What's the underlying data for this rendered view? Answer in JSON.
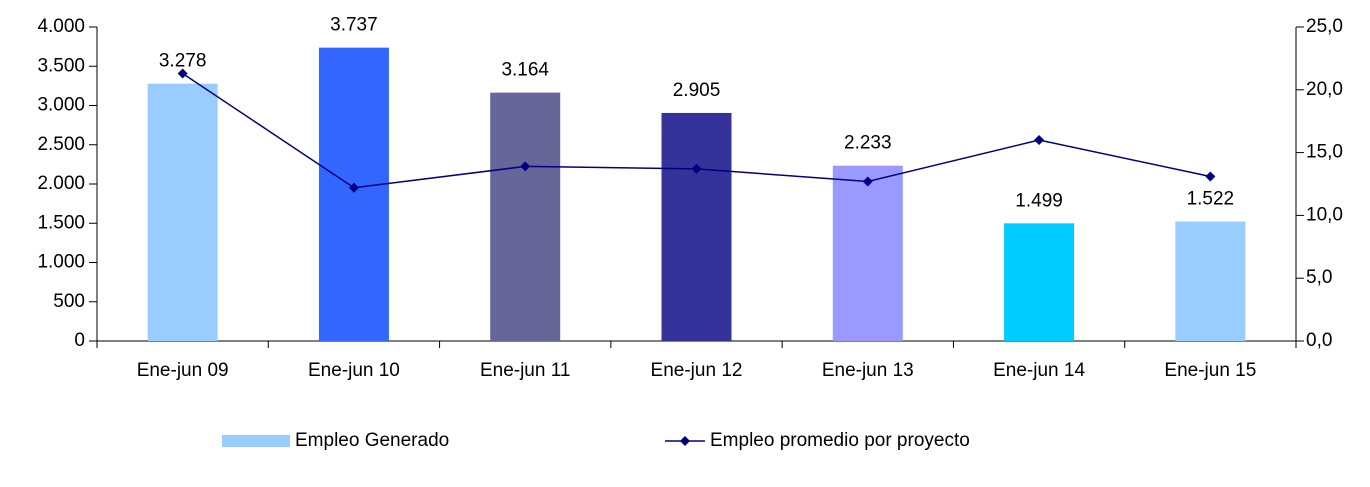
{
  "chart_data": {
    "type": "bar",
    "categories": [
      "Ene-jun 09",
      "Ene-jun 10",
      "Ene-jun 11",
      "Ene-jun 12",
      "Ene-jun 13",
      "Ene-jun 14",
      "Ene-jun 15"
    ],
    "series": [
      {
        "name": "Empleo Generado",
        "type": "bar",
        "axis": "y",
        "color": "#99ccff",
        "colors": [
          "#99ccff",
          "#3366ff",
          "#666699",
          "#333399",
          "#9999ff",
          "#00ccff",
          "#99ccff"
        ],
        "values": [
          3278,
          3737,
          3164,
          2905,
          2233,
          1499,
          1522
        ],
        "value_labels": [
          "3.278",
          "3.737",
          "3.164",
          "2.905",
          "2.233",
          "1.499",
          "1.522"
        ]
      },
      {
        "name": "Empleo promedio por proyecto",
        "type": "line",
        "axis": "y2",
        "color": "#000080",
        "values": [
          21.3,
          12.2,
          13.9,
          13.7,
          12.7,
          16.0,
          13.1
        ]
      }
    ],
    "ylim": [
      0,
      4000
    ],
    "yticks": [
      0,
      500,
      {
        "value": 1000,
        "label": "1.000"
      },
      {
        "value": 1500,
        "label": "1.500"
      },
      {
        "value": 2000,
        "label": "2.000"
      },
      {
        "value": 2500,
        "label": "2.500"
      },
      {
        "value": 3000,
        "label": "3.000"
      },
      {
        "value": 3500,
        "label": "3.500"
      },
      {
        "value": 4000,
        "label": "4.000"
      }
    ],
    "y2lim": [
      0,
      25
    ],
    "y2ticks": [
      {
        "value": 0,
        "label": "0,0"
      },
      {
        "value": 5,
        "label": "5,0"
      },
      {
        "value": 10,
        "label": "10,0"
      },
      {
        "value": 15,
        "label": "15,0"
      },
      {
        "value": 20,
        "label": "20,0"
      },
      {
        "value": 25,
        "label": "25,0"
      }
    ],
    "grid": false,
    "legend": "bottom"
  }
}
